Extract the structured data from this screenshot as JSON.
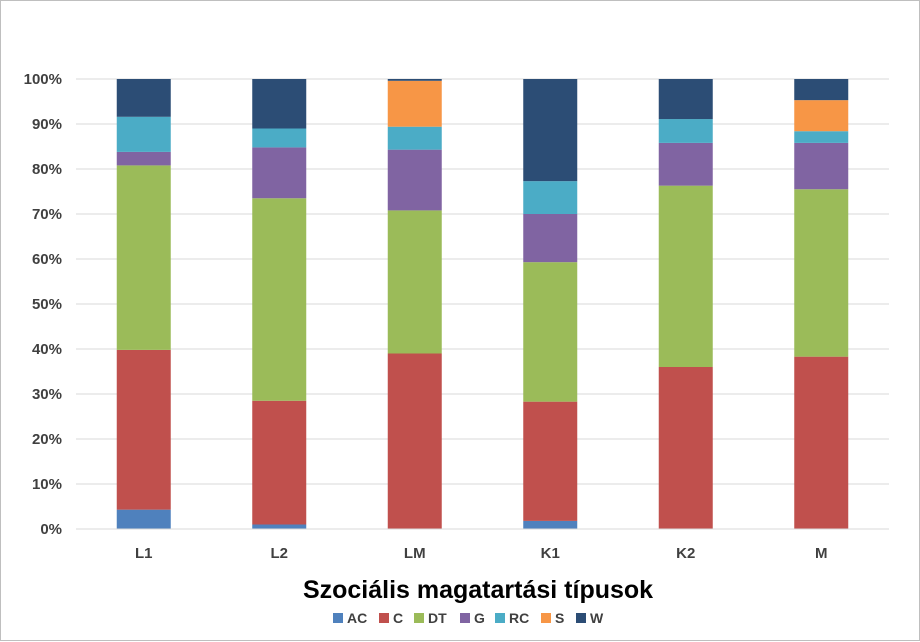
{
  "chart_data": {
    "type": "bar",
    "stacked": true,
    "percent_stacked": true,
    "categories": [
      "L1",
      "L2",
      "LM",
      "K1",
      "K2",
      "M"
    ],
    "series": [
      {
        "name": "AC",
        "color": "#4F81BD",
        "values": [
          4.3,
          1.0,
          0.0,
          1.8,
          0.0,
          0.0
        ]
      },
      {
        "name": "C",
        "color": "#C0504D",
        "values": [
          35.5,
          27.5,
          39.0,
          26.5,
          36.0,
          38.3
        ]
      },
      {
        "name": "DT",
        "color": "#9BBB59",
        "values": [
          41.0,
          45.0,
          31.8,
          31.0,
          40.3,
          37.2
        ]
      },
      {
        "name": "G",
        "color": "#8064A2",
        "values": [
          3.0,
          11.3,
          13.5,
          10.7,
          9.5,
          10.3
        ]
      },
      {
        "name": "RC",
        "color": "#4BACC6",
        "values": [
          7.8,
          4.2,
          5.1,
          7.3,
          5.3,
          2.6
        ]
      },
      {
        "name": "S",
        "color": "#F79646",
        "values": [
          0.0,
          0.0,
          10.2,
          0.0,
          0.0,
          6.9
        ]
      },
      {
        "name": "W",
        "color": "#2C4D75",
        "values": [
          8.4,
          11.0,
          0.4,
          22.7,
          8.9,
          4.7
        ]
      }
    ],
    "xlabel": "Szociális magatartási típusok",
    "ylabel": "",
    "ylim": [
      0,
      100
    ],
    "yticks": [
      "0%",
      "10%",
      "20%",
      "30%",
      "40%",
      "50%",
      "60%",
      "70%",
      "80%",
      "90%",
      "100%"
    ],
    "grid": true,
    "legend_position": "bottom"
  }
}
